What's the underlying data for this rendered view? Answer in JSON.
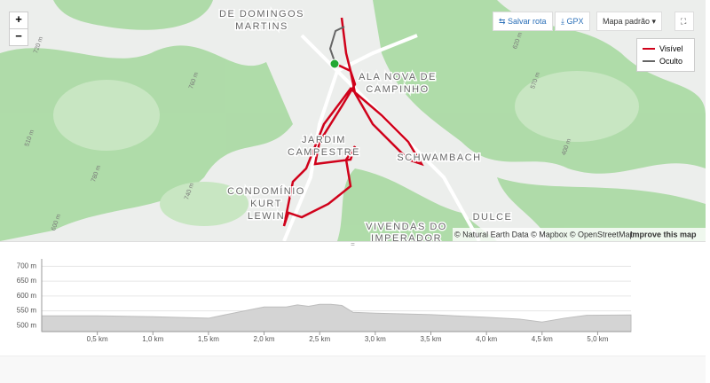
{
  "map": {
    "controls": {
      "zoom_in": "+",
      "zoom_out": "−",
      "save_route": "Salvar rota",
      "gpx": "GPX",
      "base_map": "Mapa padrão"
    },
    "legend": {
      "visible": "Visível",
      "hidden": "Oculto"
    },
    "places": [
      "DE DOMINGOS",
      "MARTINS",
      "ALA NOVA DE",
      "CAMPINHO",
      "JARDIM",
      "CAMPESTRE",
      "SCHWAMBACH",
      "CONDOMÍNIO",
      "KURT",
      "LEWIN",
      "VIVENDAS DO",
      "IMPERADOR",
      "DULCE"
    ],
    "contours": [
      "720 m",
      "760 m",
      "740 m",
      "780 m",
      "600 m",
      "570 m",
      "400 m",
      "620 m",
      "510 m"
    ],
    "attribution": "© Natural Earth Data © Mapbox © OpenStreetMap",
    "improve": "Improve this map"
  },
  "elevation_chart": {
    "type": "area",
    "color": "#d4d4d4",
    "x": [
      0,
      0.5,
      1.0,
      1.5,
      1.8,
      2.0,
      2.2,
      2.3,
      2.4,
      2.5,
      2.6,
      2.7,
      2.8,
      3.0,
      3.5,
      4.0,
      4.3,
      4.5,
      4.7,
      4.9,
      5.3
    ],
    "values": [
      533,
      533,
      530,
      525,
      548,
      563,
      563,
      570,
      565,
      572,
      572,
      568,
      545,
      542,
      537,
      528,
      522,
      512,
      525,
      535,
      536
    ],
    "xlim": [
      0,
      5.3
    ],
    "ylim": [
      480,
      710
    ],
    "yticks": [
      {
        "value": 500,
        "label": "500 m"
      },
      {
        "value": 550,
        "label": "550 m"
      },
      {
        "value": 600,
        "label": "600 m"
      },
      {
        "value": 650,
        "label": "650 m"
      },
      {
        "value": 700,
        "label": "700 m"
      }
    ],
    "xticks": [
      {
        "value": 0.5,
        "label": "0,5 km"
      },
      {
        "value": 1.0,
        "label": "1,0 km"
      },
      {
        "value": 1.5,
        "label": "1,5 km"
      },
      {
        "value": 2.0,
        "label": "2,0 km"
      },
      {
        "value": 2.5,
        "label": "2,5 km"
      },
      {
        "value": 3.0,
        "label": "3,0 km"
      },
      {
        "value": 3.5,
        "label": "3,5 km"
      },
      {
        "value": 4.0,
        "label": "4,0 km"
      },
      {
        "value": 4.5,
        "label": "4,5 km"
      },
      {
        "value": 5.0,
        "label": "5,0 km"
      }
    ],
    "grid": true
  }
}
